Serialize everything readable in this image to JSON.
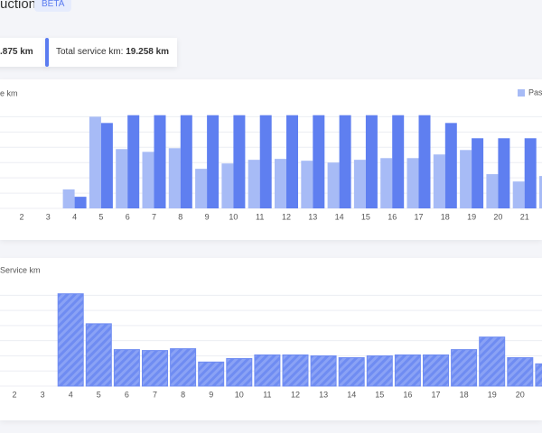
{
  "header": {
    "title": "uction",
    "badge": "BETA"
  },
  "stats": [
    {
      "value": ".875 km"
    },
    {
      "label": "Total service km:",
      "value": "19.258 km"
    }
  ],
  "chart_data": [
    {
      "type": "grouped-bar",
      "y_label": "e km",
      "legend": "top-right",
      "grid": true,
      "categories": [
        "2",
        "3",
        "4",
        "5",
        "6",
        "7",
        "8",
        "9",
        "10",
        "11",
        "12",
        "13",
        "14",
        "15",
        "16",
        "17",
        "18",
        "19",
        "20",
        "21",
        null
      ],
      "series": [
        {
          "name": "Pass",
          "color": "#a7bbf6",
          "values": [
            null,
            null,
            1.24,
            6.0,
            3.88,
            3.7,
            3.94,
            2.59,
            2.94,
            3.18,
            3.24,
            3.12,
            3.0,
            3.18,
            3.29,
            3.29,
            3.53,
            3.82,
            2.24,
            1.76,
            2.12
          ]
        },
        {
          "color": "#5f7ff0",
          "values": [
            null,
            null,
            0.76,
            5.59,
            6.1,
            6.1,
            6.1,
            6.1,
            6.1,
            6.1,
            6.1,
            6.1,
            6.1,
            6.1,
            6.1,
            6.1,
            5.59,
            4.59,
            4.59,
            4.59,
            null
          ]
        }
      ],
      "ylim": [
        0,
        6.2
      ],
      "yticks": [
        0,
        1,
        2,
        3,
        4,
        5,
        6
      ]
    },
    {
      "type": "striped-bar",
      "y_label": "Service km",
      "grid": true,
      "color": "#6f8cf2",
      "categories": [
        "2",
        "3",
        "4",
        "5",
        "6",
        "7",
        "8",
        "9",
        "10",
        "11",
        "12",
        "13",
        "14",
        "15",
        "16",
        "17",
        "18",
        "19",
        "20",
        null
      ],
      "values": [
        null,
        null,
        6.1,
        4.12,
        2.41,
        2.35,
        2.47,
        1.59,
        1.82,
        2.06,
        2.06,
        2.0,
        1.88,
        2.0,
        2.06,
        2.06,
        2.41,
        3.24,
        1.88,
        1.47
      ],
      "ylim": [
        0,
        6.2
      ],
      "yticks": [
        0,
        1,
        2,
        3,
        4,
        5,
        6
      ]
    }
  ]
}
